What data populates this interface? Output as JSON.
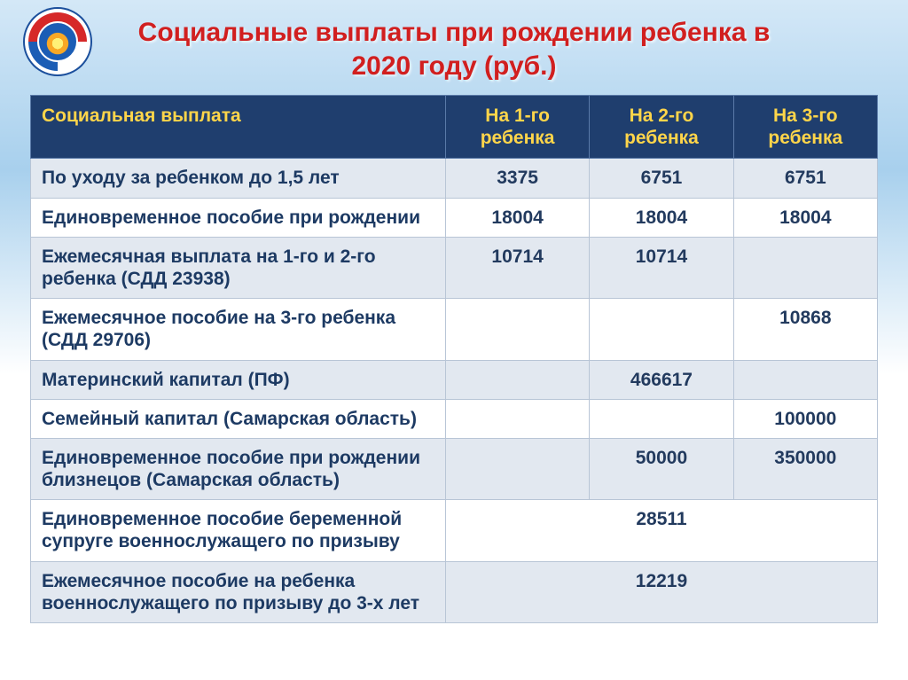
{
  "title_line1": "Социальные выплаты при рождении ребенка в",
  "title_line2": "2020 году  (руб.)",
  "colors": {
    "title": "#d11f1f",
    "header_bg": "#1f3e6e",
    "header_text": "#ffd54a",
    "row_odd_bg": "#e2e8f0",
    "row_even_bg": "#ffffff",
    "cell_text": "#1d3a63",
    "border": "#b8c5d6"
  },
  "table": {
    "columns": [
      "Социальная выплата",
      "На 1-го ребенка",
      "На 2-го ребенка",
      "На 3-го ребенка"
    ],
    "rows": [
      {
        "label": "По уходу за ребенком до 1,5 лет",
        "c1": "3375",
        "c2": "6751",
        "c3": "6751"
      },
      {
        "label": "Единовременное пособие при рождении",
        "c1": "18004",
        "c2": "18004",
        "c3": "18004"
      },
      {
        "label": "Ежемесячная выплата на 1-го и 2-го ребенка (СДД  23938)",
        "c1": "10714",
        "c2": "10714",
        "c3": ""
      },
      {
        "label": "Ежемесячное пособие на 3-го ребенка (СДД 29706)",
        "c1": "",
        "c2": "",
        "c3": "10868"
      },
      {
        "label": "Материнский капитал (ПФ)",
        "c1": "",
        "c2": "466617",
        "c3": ""
      },
      {
        "label": "Семейный капитал (Самарская область)",
        "c1": "",
        "c2": "",
        "c3": "100000"
      },
      {
        "label": "Единовременное пособие при рождении близнецов (Самарская область)",
        "c1": "",
        "c2": "50000",
        "c3": "350000"
      },
      {
        "label": "Единовременное пособие беременной супруге военнослужащего по призыву",
        "span": "28511"
      },
      {
        "label": "Ежемесячное пособие на ребенка военнослужащего по призыву до 3-х лет",
        "span": "12219"
      }
    ]
  }
}
